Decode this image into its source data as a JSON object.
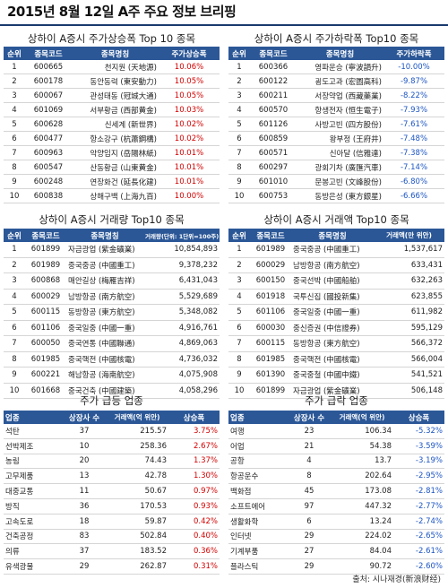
{
  "page": {
    "title": "2015년 8월 12일 A주 주요 정보 브리핑",
    "source": "출처: 시나재경(新浪财经)"
  },
  "colors": {
    "header_bg": "#2b5797",
    "up": "#d40000",
    "down": "#1c55c4"
  },
  "top_gainers": {
    "title": "상하이 A증시 주가상승폭 Top 10 종목",
    "headers": [
      "순위",
      "종목코드",
      "종목명칭",
      "주가상승폭"
    ],
    "rows": [
      [
        "1",
        "600665",
        "천지원 (天地源)",
        "10.06%"
      ],
      [
        "2",
        "600178",
        "동안동력 (東安動力)",
        "10.05%"
      ],
      [
        "3",
        "600067",
        "관성태동 (冠城大通)",
        "10.05%"
      ],
      [
        "4",
        "601069",
        "서부황금 (西部黄金)",
        "10.03%"
      ],
      [
        "5",
        "600628",
        "신세계 (新世界)",
        "10.02%"
      ],
      [
        "6",
        "600477",
        "항소강구 (杭蕭鋼構)",
        "10.02%"
      ],
      [
        "7",
        "600963",
        "악양임지 (岳陽林紙)",
        "10.01%"
      ],
      [
        "8",
        "600547",
        "산동황금 (山東黄金)",
        "10.01%"
      ],
      [
        "9",
        "600248",
        "연장화건 (延長化建)",
        "10.01%"
      ],
      [
        "10",
        "600838",
        "상해구백 (上海九百)",
        "10.00%"
      ]
    ]
  },
  "top_losers": {
    "title": "상하이 A증시 주가하락폭 Top10 종목",
    "headers": [
      "순위",
      "종목코드",
      "종목명칭",
      "주가하락폭"
    ],
    "rows": [
      [
        "1",
        "600366",
        "영파운승 (寧波韻升)",
        "-10.00%"
      ],
      [
        "2",
        "600122",
        "굉도고과 (宏圖高科)",
        "-9.87%"
      ],
      [
        "3",
        "600211",
        "서장약업 (西藏藥業)",
        "-8.22%"
      ],
      [
        "4",
        "600570",
        "항생전자 (恒生電子)",
        "-7.93%"
      ],
      [
        "5",
        "601126",
        "사방고빈 (四方股份)",
        "-7.61%"
      ],
      [
        "6",
        "600859",
        "왕부정 (王府井)",
        "-7.48%"
      ],
      [
        "7",
        "600571",
        "신아달 (信雅達)",
        "-7.38%"
      ],
      [
        "8",
        "600297",
        "광회기차 (廣匯汽車)",
        "-7.14%"
      ],
      [
        "9",
        "601010",
        "문봉고빈 (文峰股份)",
        "-6.80%"
      ],
      [
        "10",
        "600753",
        "동방은성 (東方銀星)",
        "-6.66%"
      ]
    ]
  },
  "top_volume": {
    "title": "상하이 A증시 거래량 Top10 종목",
    "headers": [
      "순위",
      "종목코드",
      "종목명칭",
      "거래량(단위: 1단위=100주)"
    ],
    "rows": [
      [
        "1",
        "601899",
        "자금광업 (紫金礦業)",
        "10,854,893"
      ],
      [
        "2",
        "601989",
        "중국중공 (中國重工)",
        "9,378,232"
      ],
      [
        "3",
        "600868",
        "매안길상 (梅雁吉祥)",
        "6,431,043"
      ],
      [
        "4",
        "600029",
        "남방항공 (南方航空)",
        "5,529,689"
      ],
      [
        "5",
        "600115",
        "동방항공 (東方航空)",
        "5,348,082"
      ],
      [
        "6",
        "601106",
        "중국일중 (中國一重)",
        "4,916,761"
      ],
      [
        "7",
        "600050",
        "중국연통 (中國聯通)",
        "4,869,063"
      ],
      [
        "8",
        "601985",
        "중국핵전 (中國核電)",
        "4,736,032"
      ],
      [
        "9",
        "600221",
        "해남항공 (海南航空)",
        "4,075,908"
      ],
      [
        "10",
        "601668",
        "중국건축 (中國建築)",
        "4,058,296"
      ]
    ]
  },
  "top_turnover": {
    "title": "상하이 A증시 거래액 Top10 종목",
    "headers": [
      "순위",
      "종목코드",
      "종목명칭",
      "거래액(만 위안)"
    ],
    "rows": [
      [
        "1",
        "601989",
        "중국중공 (中國重工)",
        "1,537,617"
      ],
      [
        "2",
        "600029",
        "남방항공 (南方航空)",
        "633,431"
      ],
      [
        "3",
        "600150",
        "중국선박 (中國船舶)",
        "632,263"
      ],
      [
        "4",
        "601918",
        "국투신집 (國投新集)",
        "623,855"
      ],
      [
        "5",
        "601106",
        "중국일중 (中國一重)",
        "611,982"
      ],
      [
        "6",
        "600030",
        "중신증권 (中信證券)",
        "595,129"
      ],
      [
        "7",
        "600115",
        "동방항공 (東方航空)",
        "566,372"
      ],
      [
        "8",
        "601985",
        "중국핵전 (中國核電)",
        "566,004"
      ],
      [
        "9",
        "601390",
        "중국중철 (中國中鐵)",
        "541,521"
      ],
      [
        "10",
        "601899",
        "자금광업 (紫金礦業)",
        "506,148"
      ]
    ]
  },
  "sectors_up": {
    "title": "주가 급등 업종",
    "headers": [
      "업종",
      "상장사 수",
      "거래액(억 위안)",
      "상승폭"
    ],
    "rows": [
      [
        "석탄",
        "37",
        "215.57",
        "3.75%"
      ],
      [
        "선박제조",
        "10",
        "258.36",
        "2.67%"
      ],
      [
        "농림",
        "20",
        "74.43",
        "1.37%"
      ],
      [
        "고무제품",
        "13",
        "42.78",
        "1.30%"
      ],
      [
        "대중교통",
        "11",
        "50.67",
        "0.97%"
      ],
      [
        "방직",
        "36",
        "170.53",
        "0.93%"
      ],
      [
        "고속도로",
        "18",
        "59.87",
        "0.42%"
      ],
      [
        "건축공정",
        "83",
        "502.84",
        "0.40%"
      ],
      [
        "의류",
        "37",
        "183.52",
        "0.36%"
      ],
      [
        "유색광물",
        "29",
        "262.87",
        "0.31%"
      ]
    ]
  },
  "sectors_down": {
    "title": "주가 급락 업종",
    "headers": [
      "업종",
      "상장사 수",
      "거래액(억 위안)",
      "상승폭"
    ],
    "rows": [
      [
        "여행",
        "23",
        "106.34",
        "-5.32%"
      ],
      [
        "어업",
        "21",
        "54.38",
        "-3.59%"
      ],
      [
        "공항",
        "4",
        "13.7",
        "-3.19%"
      ],
      [
        "항공운수",
        "8",
        "202.64",
        "-2.95%"
      ],
      [
        "백화점",
        "45",
        "173.08",
        "-2.81%"
      ],
      [
        "소프트에어",
        "97",
        "447.32",
        "-2.77%"
      ],
      [
        "생활화학",
        "6",
        "13.24",
        "-2.74%"
      ],
      [
        "인터넷",
        "29",
        "224.02",
        "-2.65%"
      ],
      [
        "기계부품",
        "27",
        "84.04",
        "-2.61%"
      ],
      [
        "플라스틱",
        "29",
        "90.72",
        "-2.60%"
      ]
    ]
  }
}
